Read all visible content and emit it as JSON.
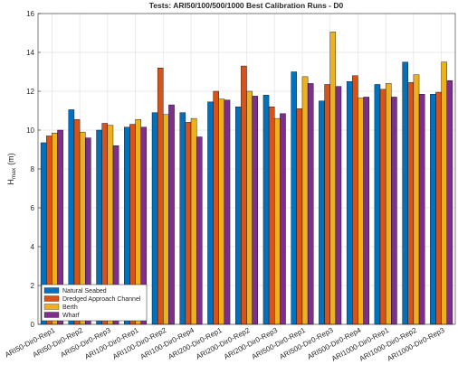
{
  "chart_data": {
    "type": "bar",
    "title": "Tests: ARI50/100/500/1000 Best Calibration Runs - D0",
    "y_label": {
      "main": "H",
      "sub": "max",
      "unit": "(m)"
    },
    "categories": [
      "ARI50-Dir0-Rep1",
      "ARI50-Dir0-Rep2",
      "ARI50-Dir0-Rep3",
      "ARI100-Dir0-Rep1",
      "ARI100-Dir0-Rep2",
      "ARI100-Dir0-Rep4",
      "ARI200-Dir0-Rep1",
      "ARI200-Dir0-Rep2",
      "ARI200-Dir0-Rep3",
      "ARI500-Dir0-Rep1",
      "ARI500-Dir0-Rep3",
      "ARI500-Dir0-Rep4",
      "ARI1000-Dir0-Rep1",
      "ARI1000-Dir0-Rep2",
      "ARI1000-Dir0-Rep3"
    ],
    "series": [
      {
        "name": "Natural Seabed",
        "color": "#0072bd",
        "values": [
          9.35,
          11.05,
          10.0,
          10.15,
          10.9,
          10.9,
          11.45,
          11.2,
          11.8,
          13.0,
          11.5,
          12.5,
          12.35,
          13.5,
          11.85
        ]
      },
      {
        "name": "Dredged Approach Channel",
        "color": "#d95319",
        "values": [
          9.7,
          10.55,
          10.35,
          10.3,
          13.2,
          10.4,
          12.0,
          13.3,
          11.2,
          11.1,
          12.35,
          12.8,
          12.1,
          12.45,
          11.95
        ]
      },
      {
        "name": "Berth",
        "color": "#edb120",
        "values": [
          9.85,
          9.9,
          10.25,
          10.55,
          10.8,
          10.6,
          11.6,
          12.0,
          10.6,
          12.75,
          15.05,
          11.65,
          12.4,
          12.85,
          13.5
        ]
      },
      {
        "name": "Wharf",
        "color": "#7e2f8e",
        "values": [
          10.0,
          9.6,
          9.2,
          10.15,
          11.3,
          9.65,
          11.55,
          11.75,
          10.85,
          12.4,
          12.25,
          11.7,
          11.7,
          11.85,
          12.55
        ]
      }
    ],
    "ylim": [
      0,
      16
    ],
    "yticks": [
      0,
      2,
      4,
      6,
      8,
      10,
      12,
      14,
      16
    ],
    "grid": true,
    "legend": "lower-left"
  }
}
